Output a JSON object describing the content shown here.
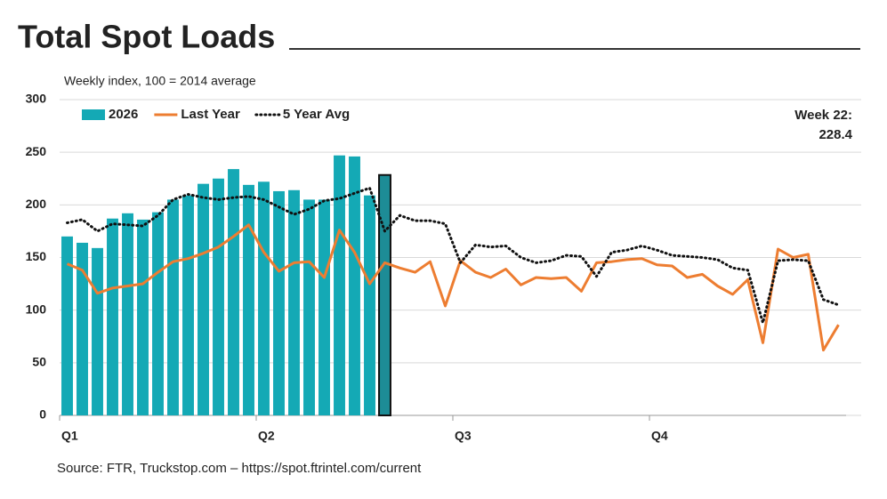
{
  "chart_data": {
    "type": "bar_line",
    "title": "Total Spot Loads",
    "subtitle": "Weekly index, 100 = 2014 average",
    "source": "Source: FTR, Truckstop.com – https://spot.ftrintel.com/current",
    "annotation": [
      "Week 22:",
      "228.4"
    ],
    "x": [
      0.5,
      1.5,
      2.5,
      3.5,
      4.5,
      5.5,
      6.5,
      7.5,
      8.5,
      9.5,
      10.5,
      11.5,
      12.5,
      13.5,
      14.5,
      15.5,
      16.5,
      17.5,
      18.5,
      19.5,
      20.5,
      21.5,
      22.5,
      23.5,
      24.5,
      25.5,
      26.5,
      27.5,
      28.5,
      29.5,
      30.5,
      31.5,
      32.5,
      33.5,
      34.5,
      35.5,
      36.5,
      37.5,
      38.5,
      39.5,
      40.5,
      41.5,
      42.5,
      43.5,
      44.5,
      45.5,
      46.5,
      47.5,
      48.5,
      49.5,
      50.5,
      51.5
    ],
    "xlim": [
      0,
      53
    ],
    "xticks": [
      {
        "value": 0,
        "label": "Q1"
      },
      {
        "value": 13,
        "label": "Q2"
      },
      {
        "value": 26,
        "label": "Q3"
      },
      {
        "value": 39,
        "label": "Q4"
      }
    ],
    "ylim": [
      0,
      300
    ],
    "yticks": [
      0,
      50,
      100,
      150,
      200,
      250,
      300
    ],
    "grid": true,
    "legend": "top-left",
    "highlight": {
      "index": 21,
      "color": "#1d8c96"
    },
    "series": [
      {
        "name": "2026",
        "kind": "bar",
        "color": "#14a9b5",
        "values": [
          170,
          164,
          159,
          187,
          192,
          186,
          193,
          205,
          209,
          220,
          225,
          234,
          219,
          222,
          213,
          214,
          205,
          205,
          247,
          246,
          209,
          228.4,
          null,
          null,
          null,
          null,
          null,
          null,
          null,
          null,
          null,
          null,
          null,
          null,
          null,
          null,
          null,
          null,
          null,
          null,
          null,
          null,
          null,
          null,
          null,
          null,
          null,
          null,
          null,
          null,
          null,
          null
        ]
      },
      {
        "name": "Last Year",
        "kind": "line",
        "color": "#ed7d31",
        "values": [
          144,
          138,
          116,
          121,
          123,
          125,
          136,
          146,
          149,
          154,
          160,
          170,
          181,
          155,
          137,
          145,
          146,
          131,
          176,
          155,
          125,
          145,
          140,
          136,
          146,
          104,
          147,
          136,
          131,
          139,
          124,
          131,
          130,
          131,
          118,
          145,
          146,
          148,
          149,
          143,
          142,
          131,
          134,
          123,
          115,
          129,
          69,
          158,
          150,
          153,
          62,
          86
        ]
      },
      {
        "name": "5 Year Avg",
        "kind": "dotted",
        "color": "#111111",
        "values": [
          183,
          186,
          175,
          182,
          181,
          180,
          190,
          205,
          210,
          207,
          205,
          207,
          208,
          205,
          198,
          191,
          196,
          204,
          206,
          211,
          216,
          175,
          190,
          185,
          185,
          182,
          145,
          162,
          160,
          161,
          150,
          145,
          147,
          152,
          151,
          132,
          155,
          157,
          161,
          157,
          152,
          151,
          150,
          148,
          140,
          138,
          88,
          147,
          148,
          147,
          110,
          105
        ]
      }
    ]
  }
}
